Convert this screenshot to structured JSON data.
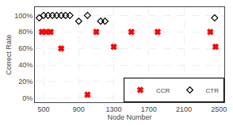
{
  "chart_data": {
    "type": "scatter",
    "title": "",
    "xlabel": "Node Number",
    "ylabel": "Correct Rate",
    "series": [
      {
        "name": "CCR",
        "color": "#ff0000",
        "marker": "x",
        "x": [
          480,
          530,
          580,
          700,
          1000,
          1100,
          1300,
          1500,
          1800,
          2400,
          2460
        ],
        "values": [
          0.8,
          0.8,
          0.8,
          0.6,
          0.04,
          0.8,
          0.62,
          0.8,
          0.8,
          0.8,
          0.62
        ]
      },
      {
        "name": "CTR",
        "color": "#000000",
        "marker": "diamond-open",
        "x": [
          450,
          500,
          550,
          600,
          650,
          700,
          750,
          800,
          900,
          1000,
          1150,
          1200,
          2450
        ],
        "values": [
          0.97,
          1.0,
          1.0,
          1.0,
          1.0,
          1.0,
          1.0,
          1.0,
          0.93,
          1.0,
          0.93,
          0.93,
          0.97
        ]
      }
    ],
    "xlim": [
      400,
      2560
    ],
    "ylim": [
      -0.05,
      1.1
    ],
    "xticks": [
      500,
      900,
      1300,
      1700,
      2100,
      2500
    ],
    "yticks": [
      {
        "value": 0.0,
        "label": "0%"
      },
      {
        "value": 0.2,
        "label": "20%"
      },
      {
        "value": 0.4,
        "label": "40%"
      },
      {
        "value": 0.6,
        "label": "60%"
      },
      {
        "value": 0.8,
        "label": "80%"
      },
      {
        "value": 1.0,
        "label": "100%"
      }
    ],
    "grid": true,
    "legend": "lower right"
  }
}
